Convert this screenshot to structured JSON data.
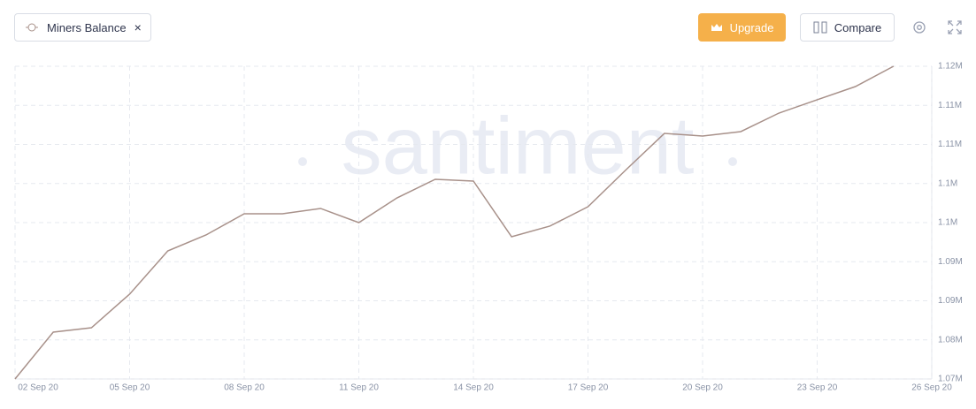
{
  "controls": {
    "upgrade": "Upgrade",
    "compare": "Compare"
  },
  "chart_data": {
    "type": "line",
    "watermark": "santiment",
    "categories": [
      "02 Sep 20",
      null,
      null,
      "05 Sep 20",
      null,
      null,
      "08 Sep 20",
      null,
      null,
      "11 Sep 20",
      null,
      null,
      "14 Sep 20",
      null,
      null,
      "17 Sep 20",
      null,
      null,
      "20 Sep 20",
      null,
      null,
      "23 Sep 20",
      null,
      null,
      "26 Sep 20"
    ],
    "series": [
      {
        "name": "Miners Balance",
        "color": "#a8918a",
        "values": [
          1075000,
          1080990,
          1081550,
          1085850,
          1091380,
          1093420,
          1096130,
          1096130,
          1096810,
          1095000,
          1098160,
          1100540,
          1100310,
          1093190,
          1094550,
          1097030,
          1101780,
          1106410,
          1106070,
          1106640,
          1109010,
          1110710,
          1112400,
          1115000,
          null
        ]
      }
    ],
    "ylim": [
      1075000,
      1115000
    ],
    "yticks": [
      {
        "value": 1075000,
        "label": "1.07M"
      },
      {
        "value": 1080000,
        "label": "1.08M"
      },
      {
        "value": 1085000,
        "label": "1.09M"
      },
      {
        "value": 1090000,
        "label": "1.09M"
      },
      {
        "value": 1095000,
        "label": "1.1M"
      },
      {
        "value": 1100000,
        "label": "1.1M"
      },
      {
        "value": 1105000,
        "label": "1.11M"
      },
      {
        "value": 1110000,
        "label": "1.11M"
      },
      {
        "value": 1115000,
        "label": "1.12M"
      }
    ],
    "grid": true
  }
}
